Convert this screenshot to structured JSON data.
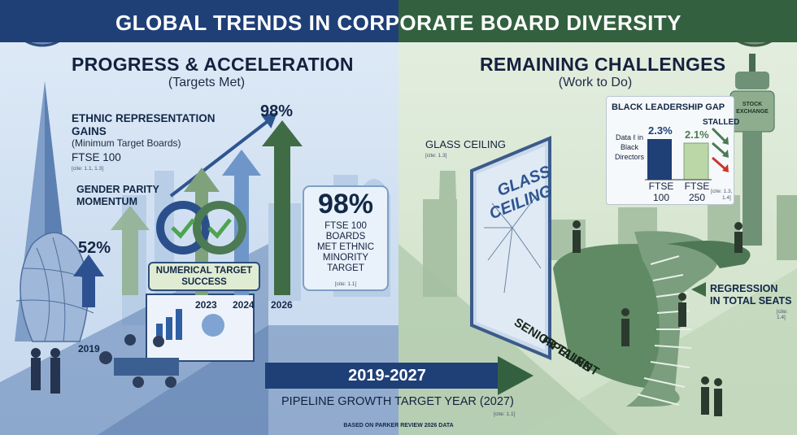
{
  "header": {
    "title": "GLOBAL TRENDS IN CORPORATE BOARD DIVERSITY"
  },
  "left": {
    "title": "PROGRESS & ACCELERATION",
    "subtitle": "(Targets Met)",
    "ethnic": {
      "line1": "ETHNIC REPRESENTATION",
      "line2": "GAINS",
      "line3": "(Minimum Target Boards)",
      "line4": "FTSE 100",
      "cite": "[cite: 1.1, 1.3]"
    },
    "gender": {
      "line1": "GENDER PARITY",
      "line2": "MOMENTUM"
    },
    "pct_start": "52%",
    "pct_end": "98%",
    "years": {
      "y2019": "2019",
      "y2023": "2023",
      "y2024": "2024",
      "y2026": "2026"
    },
    "target_box": {
      "line1": "NUMERICAL TARGET",
      "line2": "SUCCESS"
    },
    "callout": {
      "big": "98%",
      "line1": "FTSE 100",
      "line2": "BOARDS",
      "line3": "MET ETHNIC",
      "line4": "MINORITY",
      "line5": "TARGET",
      "cite": "[cite: 1.1]"
    }
  },
  "right": {
    "title": "REMAINING CHALLENGES",
    "subtitle": "(Work to Do)",
    "glass": {
      "label": "GLASS CEILING",
      "cite": "[cite: 1.3]",
      "pane_line1": "GLASS",
      "pane_line2": "CEILING"
    },
    "gap": {
      "title": "BLACK LEADERSHIP GAP",
      "stalled": "STALLED",
      "v1": "2.3%",
      "v2": "2.1%",
      "desc1": "Data ℓ in",
      "desc2": "Black",
      "desc3": "Directors",
      "cat1a": "FTSE",
      "cat1b": "100",
      "cat2a": "FTSE",
      "cat2b": "250",
      "cite1": "[cite: 1.3,",
      "cite2": "1.4]"
    },
    "tower": {
      "line1": "STOCK",
      "line2": "EXCHANGE"
    },
    "regression": {
      "line1": "REGRESSION",
      "line2": "IN TOTAL SEATS",
      "cite": "[cite: 1.4]"
    },
    "pipeline": {
      "line1": "SENIOR TALENT",
      "line2": "PIPELINE"
    }
  },
  "bottom": {
    "range": "2019-2027",
    "label": "PIPELINE GROWTH TARGET YEAR (2027)",
    "cite": "[cite: 1.1]",
    "source": "BASED ON PARKER REVIEW 2026 DATA"
  },
  "colors": {
    "navy": "#1f3f77",
    "forest": "#33613f",
    "arrow_green": "#3f6b45",
    "arrow_blue": "#6f96c8",
    "accent_red": "#c9372c"
  }
}
